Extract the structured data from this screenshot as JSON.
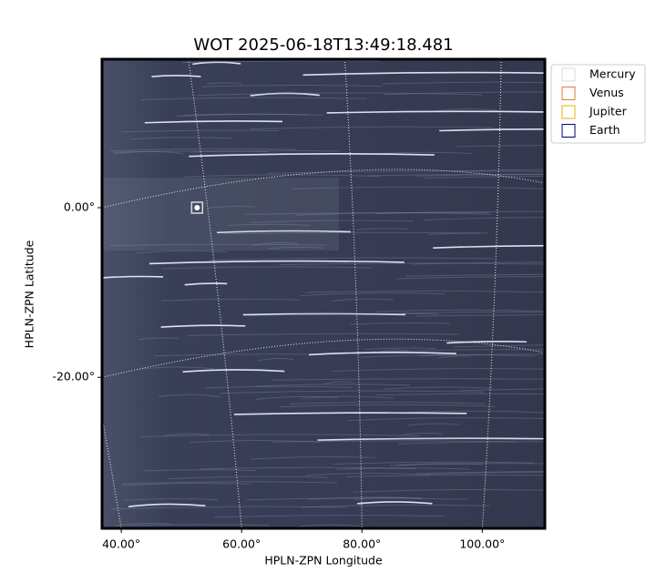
{
  "chart_data": {
    "type": "image",
    "title": "WOT 2025-06-18T13:49:18.481",
    "xlabel": "HPLN-ZPN Longitude",
    "ylabel": "HPLN-ZPN Latitude",
    "xlim": [
      36.8,
      110.4
    ],
    "ylim": [
      -37.8,
      17.5
    ],
    "xticks": [
      {
        "value": 40,
        "label": "40.00°"
      },
      {
        "value": 60,
        "label": "60.00°"
      },
      {
        "value": 80,
        "label": "80.00°"
      },
      {
        "value": 100,
        "label": "100.00°"
      }
    ],
    "yticks": [
      {
        "value": 0,
        "label": "0.00°"
      },
      {
        "value": -20,
        "label": "-20.00°"
      }
    ],
    "grid": true,
    "legend": "upper right outside",
    "series": [
      {
        "name": "Mercury",
        "color": "#d9d9d9",
        "x": 52.6,
        "y": 0
      },
      {
        "name": "Venus",
        "color": "#e07b39"
      },
      {
        "name": "Jupiter",
        "color": "#e8b10c"
      },
      {
        "name": "Earth",
        "color": "#000080"
      }
    ]
  }
}
